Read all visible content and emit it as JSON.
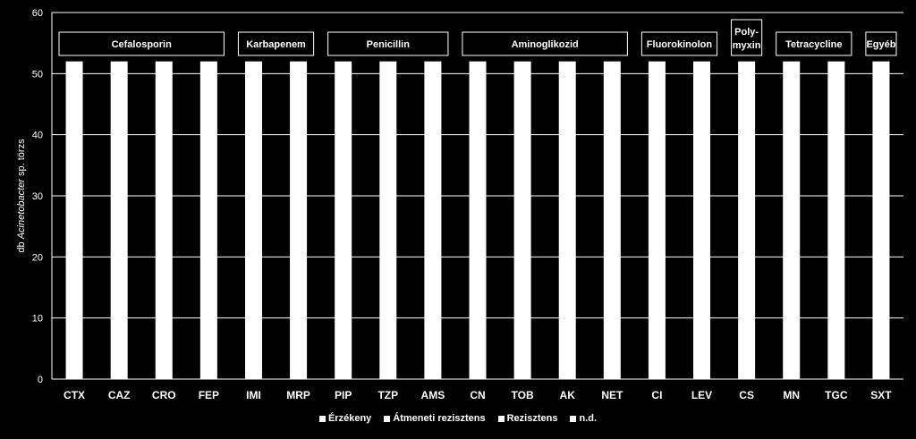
{
  "chart_data": {
    "type": "bar",
    "categories": [
      "CTX",
      "CAZ",
      "CRO",
      "FEP",
      "IMI",
      "MRP",
      "PIP",
      "TZP",
      "AMS",
      "CN",
      "TOB",
      "AK",
      "NET",
      "CI",
      "LEV",
      "CS",
      "MN",
      "TGC",
      "SXT"
    ],
    "series": [
      {
        "name": "Érzékeny",
        "values": [
          52,
          52,
          52,
          52,
          52,
          52,
          52,
          52,
          52,
          52,
          52,
          52,
          52,
          52,
          52,
          52,
          52,
          52,
          52
        ]
      },
      {
        "name": "Átmeneti rezisztens",
        "values": [
          0,
          0,
          0,
          0,
          0,
          0,
          0,
          0,
          0,
          0,
          0,
          0,
          0,
          0,
          0,
          0,
          0,
          0,
          0
        ]
      },
      {
        "name": "Rezisztens",
        "values": [
          0,
          0,
          0,
          0,
          0,
          0,
          0,
          0,
          0,
          0,
          0,
          0,
          0,
          0,
          0,
          0,
          0,
          0,
          0
        ]
      },
      {
        "name": "n.d.",
        "values": [
          0,
          0,
          0,
          0,
          0,
          0,
          0,
          0,
          0,
          0,
          0,
          0,
          0,
          0,
          0,
          0,
          0,
          0,
          0
        ]
      }
    ],
    "ylabel_prefix": "db ",
    "ylabel_italic": "Acinetobacter",
    "ylabel_suffix": " sp. törzs",
    "ylim": [
      0,
      60
    ],
    "yticks": [
      0,
      10,
      20,
      30,
      40,
      50,
      60
    ],
    "grid": true,
    "legend_position": "bottom",
    "groups": [
      {
        "label": "Cefalosporin",
        "from": 0,
        "to": 3
      },
      {
        "label": "Karbapenem",
        "from": 4,
        "to": 5
      },
      {
        "label": "Penicillin",
        "from": 6,
        "to": 8
      },
      {
        "label": "Aminoglikozid",
        "from": 9,
        "to": 12
      },
      {
        "label": "Fluorokinolon",
        "from": 13,
        "to": 14
      },
      {
        "label": "Poly-\nmyxin",
        "from": 15,
        "to": 15
      },
      {
        "label": "Tetracycline",
        "from": 16,
        "to": 17
      },
      {
        "label": "Egyéb",
        "from": 18,
        "to": 18
      }
    ]
  },
  "colors": {
    "background": "#000000",
    "bars": "#ffffff",
    "axis": "#ffffff"
  }
}
